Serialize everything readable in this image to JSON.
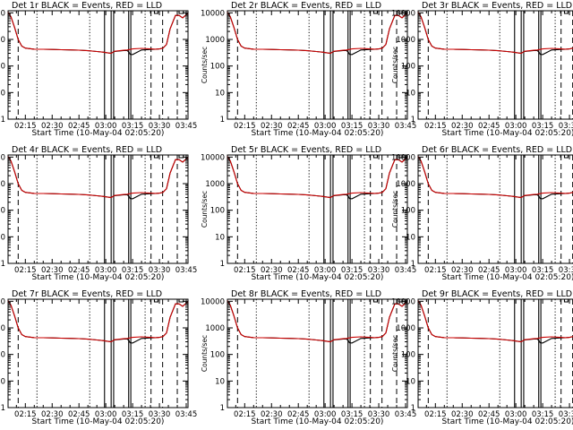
{
  "chart_data": {
    "type": "line",
    "layout": "3x3-grid",
    "title_template": "Det {det}r BLACK = Events, RED = LLD",
    "xlabel": "Start Time (10-May-04 02:05:20)",
    "ylabel": "Counts/sec",
    "x_ticks": [
      "02:15",
      "02:30",
      "02:45",
      "03:00",
      "03:15",
      "03:30",
      "03:45"
    ],
    "x_tick_minutes": [
      15,
      30,
      45,
      60,
      75,
      90,
      105
    ],
    "x_range_minutes": [
      5.33,
      106
    ],
    "y_ticks": [
      "1",
      "10",
      "100",
      "1000",
      "10000"
    ],
    "y_range": [
      1,
      12000
    ],
    "y_scale": "log",
    "colors": {
      "events": "#000000",
      "lld": "#cc0000"
    },
    "markers": {
      "solid_minutes": [
        59.3,
        63.0,
        64.4,
        72.8,
        74.0
      ],
      "dotted_minutes": [
        21.5,
        51.0,
        82.0
      ],
      "dashed_minutes": [
        11.0,
        85.3,
        91.8,
        100.0
      ]
    },
    "series": [
      {
        "name": "Events",
        "x": [
          5.33,
          7,
          9,
          11,
          13,
          15,
          20,
          25,
          30,
          35,
          40,
          45,
          50,
          55,
          59,
          60,
          63,
          64,
          65,
          70,
          72,
          73,
          73.6,
          75,
          80,
          85,
          88,
          90,
          92,
          94,
          96,
          99,
          101,
          103,
          105,
          106
        ],
        "y": [
          10500,
          7000,
          2800,
          1000,
          560,
          470,
          430,
          425,
          420,
          410,
          405,
          395,
          375,
          350,
          330,
          320,
          300,
          330,
          350,
          380,
          380,
          330,
          275,
          270,
          400,
          420,
          430,
          440,
          470,
          650,
          2500,
          8000,
          8000,
          6500,
          8500,
          9500
        ]
      },
      {
        "name": "LLD",
        "x": [
          5.33,
          7,
          9,
          11,
          13,
          15,
          20,
          25,
          30,
          35,
          40,
          45,
          50,
          55,
          59,
          60,
          63,
          64,
          65,
          70,
          72,
          75,
          80,
          85,
          88,
          90,
          92,
          94,
          96,
          99,
          101,
          103,
          105,
          106
        ],
        "y": [
          10500,
          7000,
          2800,
          1000,
          560,
          470,
          430,
          425,
          420,
          410,
          405,
          395,
          375,
          350,
          330,
          320,
          300,
          330,
          360,
          390,
          400,
          440,
          460,
          440,
          430,
          440,
          470,
          650,
          2500,
          8000,
          8000,
          6500,
          8500,
          9500
        ]
      }
    ],
    "panels": [
      {
        "det": "1"
      },
      {
        "det": "2"
      },
      {
        "det": "3"
      },
      {
        "det": "4"
      },
      {
        "det": "5"
      },
      {
        "det": "6"
      },
      {
        "det": "7"
      },
      {
        "det": "8"
      },
      {
        "det": "9"
      }
    ]
  }
}
